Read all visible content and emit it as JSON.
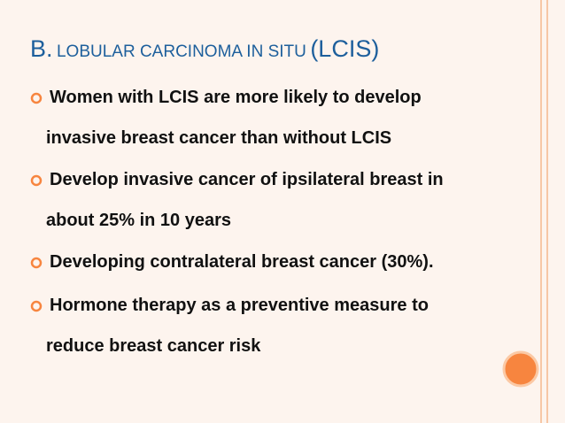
{
  "title": {
    "letter": "B.",
    "main": "LOBULAR CARCINOMA IN SITU",
    "abbr": "(LCIS)"
  },
  "bullets": [
    [
      "Women with LCIS are more likely to develop",
      "invasive breast cancer than without LCIS"
    ],
    [
      "Develop invasive cancer of ipsilateral breast in",
      "about 25% in 10 years"
    ],
    [
      "Developing contralateral breast cancer (30%)."
    ],
    [
      "Hormone therapy as a preventive measure to",
      "reduce breast cancer risk"
    ]
  ]
}
